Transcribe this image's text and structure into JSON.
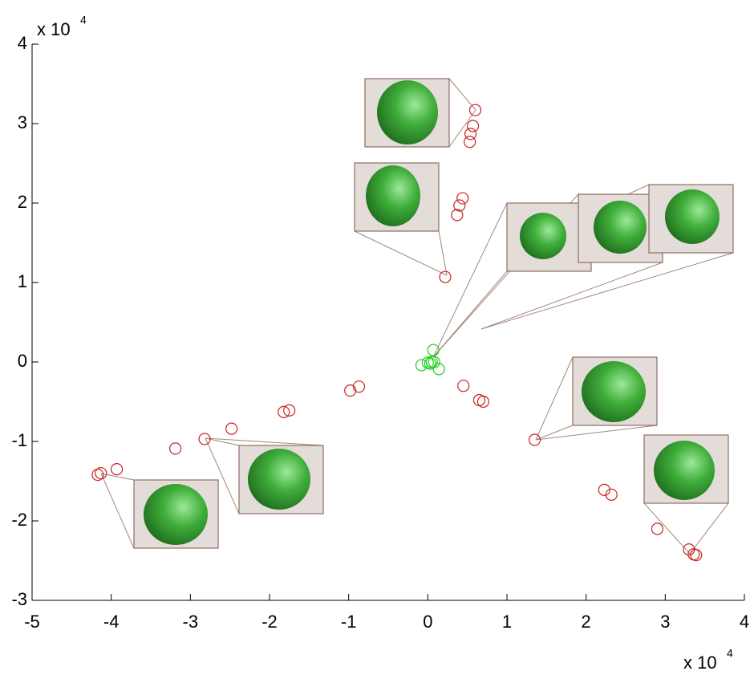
{
  "chart_data": {
    "type": "scatter",
    "x_multiplier": "x 10",
    "x_exponent": "4",
    "y_multiplier": "x 10",
    "y_exponent": "4",
    "xlim": [
      -5,
      4
    ],
    "xticks": [
      -5,
      -4,
      -3,
      -2,
      -1,
      0,
      1,
      2,
      3,
      4
    ],
    "ylim": [
      -3,
      4
    ],
    "yticks": [
      -3,
      -2,
      -1,
      0,
      1,
      2,
      3,
      4
    ],
    "grid": false,
    "series": [
      {
        "color": "#cc2222",
        "x": [
          0.6,
          0.57,
          0.54,
          0.53,
          0.44,
          0.4,
          0.37,
          0.22,
          0.45,
          0.65,
          0.7,
          -0.98,
          -0.87,
          -1.82,
          -1.75,
          -2.48,
          -2.82,
          -3.19,
          -3.93,
          -4.13,
          -4.17,
          1.35,
          2.23,
          2.32,
          2.9,
          3.3,
          3.36,
          3.39
        ],
        "y": [
          3.17,
          2.97,
          2.87,
          2.77,
          2.06,
          1.97,
          1.85,
          1.07,
          -0.3,
          -0.48,
          -0.5,
          -0.36,
          -0.31,
          -0.63,
          -0.61,
          -0.84,
          -0.97,
          -1.09,
          -1.35,
          -1.4,
          -1.42,
          -0.98,
          -1.61,
          -1.67,
          -2.1,
          -2.36,
          -2.42,
          -2.43
        ]
      },
      {
        "color": "#22cc22",
        "x": [
          0.07,
          0.05,
          0.03,
          -0.08,
          0.08,
          0.14,
          0.0
        ],
        "y": [
          0.15,
          0.0,
          -0.02,
          -0.04,
          0.0,
          -0.09,
          -0.01
        ]
      }
    ]
  }
}
